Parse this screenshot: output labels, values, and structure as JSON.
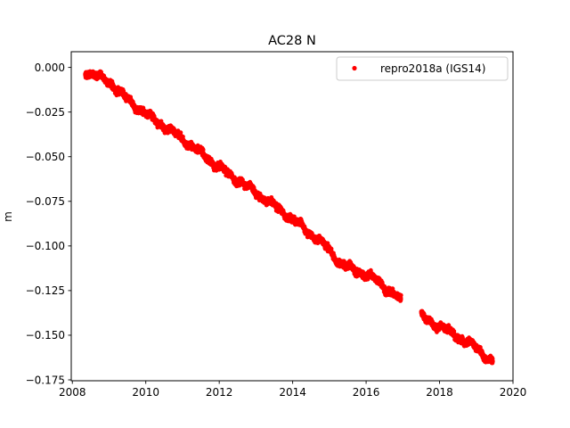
{
  "chart_data": {
    "type": "scatter",
    "title": "AC28 N",
    "xlabel": "",
    "ylabel": "m",
    "xlim": [
      2007.97,
      2020.0
    ],
    "ylim": [
      -0.1755,
      0.0088
    ],
    "xticks": [
      2008,
      2010,
      2012,
      2014,
      2016,
      2018,
      2020
    ],
    "xtick_labels": [
      "2008",
      "2010",
      "2012",
      "2014",
      "2016",
      "2018",
      "2020"
    ],
    "yticks": [
      0.0,
      -0.025,
      -0.05,
      -0.075,
      -0.1,
      -0.125,
      -0.15,
      -0.175
    ],
    "ytick_labels": [
      "0.000",
      "−0.025",
      "−0.050",
      "−0.075",
      "−0.100",
      "−0.125",
      "−0.150",
      "−0.175"
    ],
    "grid": false,
    "legend": {
      "position": "top-right",
      "entries": [
        "repro2018a (IGS14)"
      ]
    },
    "series": [
      {
        "name": "repro2018a (IGS14)",
        "color": "#ff0000",
        "marker": "circle",
        "trend": [
          {
            "x": 2008.35,
            "y": -0.002
          },
          {
            "x": 2009.0,
            "y": -0.008
          },
          {
            "x": 2009.5,
            "y": -0.018
          },
          {
            "x": 2010.0,
            "y": -0.026
          },
          {
            "x": 2011.0,
            "y": -0.04
          },
          {
            "x": 2012.0,
            "y": -0.056
          },
          {
            "x": 2013.0,
            "y": -0.07
          },
          {
            "x": 2014.0,
            "y": -0.085
          },
          {
            "x": 2015.0,
            "y": -0.102
          },
          {
            "x": 2015.3,
            "y": -0.11
          },
          {
            "x": 2016.0,
            "y": -0.116
          },
          {
            "x": 2016.4,
            "y": -0.121
          },
          {
            "x": 2016.9,
            "y": -0.13
          },
          {
            "x": 2017.55,
            "y": -0.14
          },
          {
            "x": 2018.0,
            "y": -0.145
          },
          {
            "x": 2019.0,
            "y": -0.157
          },
          {
            "x": 2019.45,
            "y": -0.165
          }
        ],
        "gaps": [
          [
            2016.95,
            2017.5
          ]
        ],
        "noise": 0.0025
      }
    ]
  }
}
